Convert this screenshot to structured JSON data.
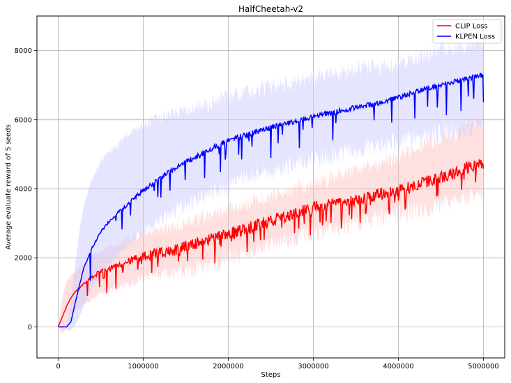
{
  "chart_data": {
    "type": "line",
    "title": "HalfCheetah-v2",
    "xlabel": "Steps",
    "ylabel": "Average evaluate reward of 5 seeds",
    "xlim": [
      -250000,
      5250000
    ],
    "ylim": [
      -900,
      9000
    ],
    "xticks": [
      0,
      1000000,
      2000000,
      3000000,
      4000000,
      5000000
    ],
    "xtick_labels": [
      "0",
      "1000000",
      "2000000",
      "3000000",
      "4000000",
      "5000000"
    ],
    "yticks": [
      0,
      2000,
      4000,
      6000,
      8000
    ],
    "ytick_labels": [
      "0",
      "2000",
      "4000",
      "6000",
      "8000"
    ],
    "grid": true,
    "legend_position": "top-right",
    "series": [
      {
        "name": "CLIP Loss",
        "color": "#ff0000",
        "band_color": "#ffbbbb",
        "x": [
          0,
          50000,
          100000,
          150000,
          200000,
          300000,
          400000,
          500000,
          600000,
          700000,
          800000,
          900000,
          1000000,
          1200000,
          1400000,
          1600000,
          1800000,
          2000000,
          2200000,
          2400000,
          2600000,
          2800000,
          3000000,
          3200000,
          3400000,
          3600000,
          3800000,
          4000000,
          4200000,
          4400000,
          4600000,
          4800000,
          5000000
        ],
        "values": [
          0,
          300,
          600,
          850,
          1000,
          1250,
          1450,
          1600,
          1700,
          1800,
          1880,
          1950,
          2050,
          2150,
          2250,
          2400,
          2550,
          2700,
          2850,
          3000,
          3150,
          3300,
          3450,
          3550,
          3650,
          3750,
          3850,
          3950,
          4100,
          4250,
          4400,
          4600,
          4750
        ],
        "upper": [
          0,
          900,
          1300,
          1500,
          1600,
          1850,
          2050,
          2200,
          2300,
          2400,
          2500,
          2600,
          2700,
          2800,
          2950,
          3100,
          3250,
          3400,
          3550,
          3700,
          3850,
          4000,
          4150,
          4300,
          4450,
          4600,
          4750,
          4900,
          5100,
          5300,
          5500,
          5800,
          6000
        ],
        "lower": [
          0,
          -200,
          0,
          250,
          450,
          650,
          800,
          950,
          1050,
          1150,
          1250,
          1300,
          1400,
          1500,
          1600,
          1700,
          1850,
          2000,
          2150,
          2300,
          2450,
          2600,
          2750,
          2850,
          2950,
          3050,
          3150,
          3250,
          3350,
          3450,
          3600,
          3750,
          3900
        ]
      },
      {
        "name": "KLPEN Loss",
        "color": "#0000ff",
        "band_color": "#ccccff",
        "x": [
          0,
          100000,
          150000,
          200000,
          250000,
          300000,
          400000,
          500000,
          600000,
          700000,
          800000,
          900000,
          1000000,
          1200000,
          1400000,
          1600000,
          1800000,
          2000000,
          2200000,
          2400000,
          2600000,
          2800000,
          3000000,
          3200000,
          3400000,
          3600000,
          3800000,
          4000000,
          4200000,
          4400000,
          4600000,
          4800000,
          5000000
        ],
        "values": [
          0,
          0,
          150,
          700,
          1200,
          1700,
          2300,
          2750,
          3050,
          3300,
          3500,
          3750,
          3950,
          4300,
          4650,
          4900,
          5150,
          5400,
          5550,
          5700,
          5850,
          5950,
          6100,
          6200,
          6300,
          6400,
          6500,
          6650,
          6800,
          6950,
          7050,
          7200,
          7300
        ],
        "upper": [
          0,
          50,
          700,
          1800,
          2800,
          3500,
          4300,
          4800,
          5100,
          5300,
          5500,
          5700,
          5850,
          6050,
          6200,
          6350,
          6500,
          6650,
          6800,
          6900,
          7000,
          7100,
          7200,
          7300,
          7400,
          7500,
          7550,
          7650,
          7800,
          7950,
          8050,
          8150,
          8300
        ],
        "lower": [
          0,
          -100,
          -100,
          50,
          300,
          600,
          1100,
          1500,
          1800,
          2100,
          2350,
          2550,
          2750,
          3100,
          3400,
          3650,
          3900,
          4100,
          4300,
          4450,
          4600,
          4750,
          4850,
          4950,
          5050,
          5150,
          5250,
          5350,
          5450,
          5550,
          5650,
          5750,
          5900
        ]
      }
    ]
  }
}
